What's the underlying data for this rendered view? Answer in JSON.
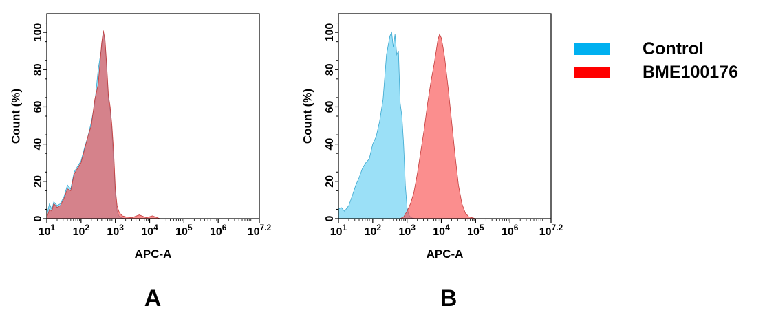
{
  "chart_data": [
    {
      "type": "area",
      "panel_label": "A",
      "xlabel": "APC-A",
      "ylabel": "Count  (%)",
      "x_scale": "log10",
      "xlim": [
        10,
        15848932
      ],
      "ylim": [
        0,
        110
      ],
      "x_ticks": [
        {
          "value": 10,
          "base": "10",
          "exp": "1"
        },
        {
          "value": 100,
          "base": "10",
          "exp": "2"
        },
        {
          "value": 1000,
          "base": "10",
          "exp": "3"
        },
        {
          "value": 10000,
          "base": "10",
          "exp": "4"
        },
        {
          "value": 100000,
          "base": "10",
          "exp": "5"
        },
        {
          "value": 1000000,
          "base": "10",
          "exp": "6"
        },
        {
          "value": 15848932,
          "base": "10",
          "exp": "7.2"
        }
      ],
      "y_ticks": [
        0,
        20,
        40,
        60,
        80,
        100
      ],
      "series": [
        {
          "name": "Control",
          "color": "#79D6F4",
          "x": [
            10,
            12,
            14,
            16,
            20,
            25,
            32,
            40,
            50,
            63,
            79,
            100,
            126,
            158,
            200,
            251,
            316,
            398,
            447,
            501,
            562,
            631,
            708,
            794,
            891,
            1000,
            1122,
            1259,
            1413,
            1585,
            2000,
            3000,
            100000,
            15848932
          ],
          "y": [
            2,
            8,
            5,
            9,
            7,
            8,
            12,
            18,
            16,
            25,
            28,
            31,
            38,
            44,
            52,
            62,
            80,
            92,
            100,
            94,
            80,
            63,
            58,
            46,
            30,
            12,
            4,
            1.5,
            0.8,
            0.3,
            0,
            0,
            0,
            0
          ]
        },
        {
          "name": "BME100176",
          "color": "#F94949",
          "x": [
            10,
            12,
            14,
            16,
            20,
            25,
            32,
            40,
            50,
            63,
            79,
            100,
            126,
            158,
            200,
            251,
            316,
            398,
            447,
            501,
            562,
            631,
            708,
            794,
            891,
            1000,
            1122,
            1259,
            1413,
            1585,
            2000,
            3000,
            5000,
            8000,
            12000,
            20000,
            15848932
          ],
          "y": [
            0.5,
            5,
            4,
            8,
            6,
            7,
            11,
            16,
            15,
            24,
            27,
            30,
            37,
            44,
            50,
            64,
            72,
            94,
            101,
            96,
            82,
            66,
            60,
            50,
            36,
            16,
            7,
            4,
            2.5,
            1.5,
            1,
            0.5,
            2,
            0.5,
            1.5,
            0,
            0
          ]
        }
      ]
    },
    {
      "type": "area",
      "panel_label": "B",
      "xlabel": "APC-A",
      "ylabel": "Count  (%)",
      "x_scale": "log10",
      "xlim": [
        10,
        15848932
      ],
      "ylim": [
        0,
        110
      ],
      "x_ticks": [
        {
          "value": 10,
          "base": "10",
          "exp": "1"
        },
        {
          "value": 100,
          "base": "10",
          "exp": "2"
        },
        {
          "value": 1000,
          "base": "10",
          "exp": "3"
        },
        {
          "value": 10000,
          "base": "10",
          "exp": "4"
        },
        {
          "value": 100000,
          "base": "10",
          "exp": "5"
        },
        {
          "value": 1000000,
          "base": "10",
          "exp": "6"
        },
        {
          "value": 15848932,
          "base": "10",
          "exp": "7.2"
        }
      ],
      "y_ticks": [
        0,
        20,
        40,
        60,
        80,
        100
      ],
      "series": [
        {
          "name": "Control",
          "color": "#79D6F4",
          "x": [
            10,
            12,
            15,
            20,
            25,
            32,
            40,
            50,
            63,
            79,
            100,
            126,
            158,
            200,
            251,
            316,
            355,
            398,
            447,
            501,
            562,
            631,
            708,
            794,
            891,
            1000,
            1122,
            1259,
            1413,
            1778,
            15848932
          ],
          "y": [
            5,
            6,
            4,
            7,
            12,
            18,
            22,
            27,
            30,
            32,
            40,
            44,
            52,
            64,
            88,
            98,
            100,
            92,
            99,
            88,
            90,
            62,
            55,
            40,
            18,
            6,
            2,
            0.8,
            0.3,
            0,
            0
          ]
        },
        {
          "name": "BME100176",
          "color": "#F94949",
          "x": [
            10,
            631,
            800,
            1000,
            1259,
            1585,
            1995,
            2512,
            3162,
            3981,
            5012,
            6310,
            7943,
            8913,
            10000,
            11220,
            12589,
            15849,
            19953,
            25119,
            31623,
            39811,
            50119,
            63096,
            79433,
            100000,
            15848932
          ],
          "y": [
            0,
            0,
            1,
            4,
            8,
            14,
            24,
            36,
            48,
            62,
            74,
            84,
            96,
            99,
            97,
            92,
            86,
            70,
            52,
            34,
            18,
            8,
            3,
            1,
            0.5,
            0,
            0
          ]
        }
      ]
    }
  ],
  "legend": {
    "items": [
      {
        "label": "Control",
        "color": "#00B0F0"
      },
      {
        "label": "BME100176",
        "color": "#FF0000"
      }
    ]
  }
}
